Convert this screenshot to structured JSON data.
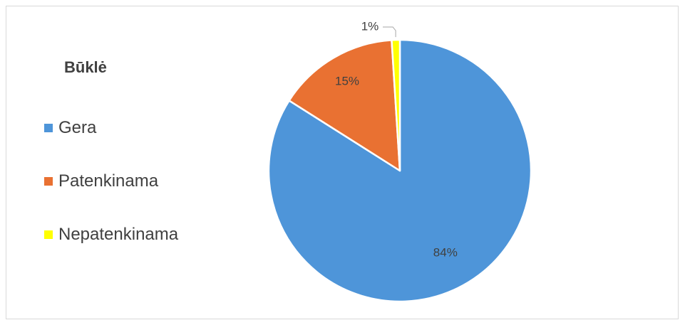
{
  "chart_data": {
    "type": "pie",
    "title": "Būklė",
    "categories": [
      "Gera",
      "Patenkinama",
      "Nepatenkinama"
    ],
    "values": [
      84,
      15,
      1
    ],
    "value_labels": [
      "84%",
      "15%",
      "1%"
    ],
    "colors": [
      "#4e95d9",
      "#e97132",
      "#ffff00"
    ],
    "legend_position": "left",
    "start_angle_deg": 0,
    "direction": "clockwise"
  }
}
